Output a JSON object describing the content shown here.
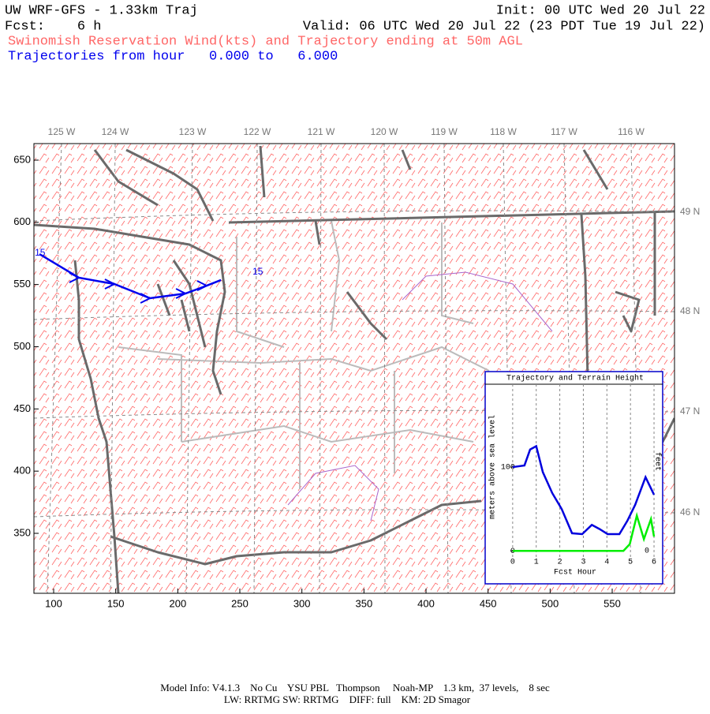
{
  "header": {
    "title": "UW WRF-GFS - 1.33km Traj",
    "init": "Init: 00 UTC Wed 20 Jul 22",
    "fcst": "Fcst:    6 h",
    "valid": "Valid: 06 UTC Wed 20 Jul 22 (23 PDT Tue 19 Jul 22)",
    "subtitle": "Swinomish Reservation Wind(kts) and Trajectory ending at 50m AGL",
    "trajectory_hours": "Trajectories from hour   0.000 to   6.000"
  },
  "map": {
    "xlim": [
      84.1,
      600.2
    ],
    "ylim": [
      301.8,
      663.3
    ],
    "xticks": [
      100,
      150,
      200,
      250,
      300,
      350,
      400,
      450,
      500,
      550
    ],
    "yticks": [
      350,
      400,
      450,
      500,
      550,
      600,
      650
    ],
    "lon_labels": [
      "125 W",
      "124 W",
      "123 W",
      "122 W",
      "121 W",
      "120 W",
      "119 W",
      "118 W",
      "117 W",
      "116 W"
    ],
    "lat_labels": [
      "49 N",
      "48 N",
      "47 N",
      "46 N"
    ],
    "trajectory": {
      "color": "#0000ee",
      "x": [
        88.6,
        120.3,
        148.9,
        177.6,
        206.2,
        223.3,
        234.8
      ],
      "y": [
        574.5,
        555.5,
        550.4,
        539.0,
        542.8,
        549.1,
        553.6
      ],
      "labels": [
        "15",
        "15"
      ]
    }
  },
  "chart_data": {
    "type": "line",
    "title": "Trajectory and Terrain Height",
    "xlabel": "Fcst Hour",
    "ylabel": "meters above sea level",
    "y2label": "feet",
    "xlim": [
      -1.0,
      6.3
    ],
    "ylim": [
      -13,
      199
    ],
    "xticks": [
      0,
      1,
      2,
      3,
      4,
      5,
      6
    ],
    "yticks": [
      0,
      100
    ],
    "y2lim": [
      -43,
      653
    ],
    "y2ticks": [
      0
    ],
    "series": [
      {
        "color": "#0000dd",
        "x": [
          0,
          0.5,
          0.74,
          1.0,
          1.28,
          1.68,
          2.08,
          2.52,
          2.95,
          3.36,
          3.69,
          4.03,
          4.53,
          4.87,
          5.2,
          5.64,
          6.0
        ],
        "values": [
          100,
          102,
          121,
          125,
          94,
          69,
          50,
          21,
          20,
          31,
          26,
          20,
          20,
          36,
          55,
          88,
          67
        ]
      },
      {
        "color": "#00ee00",
        "x": [
          0,
          4.7,
          4.97,
          5.27,
          5.57,
          5.87,
          6.0
        ],
        "values": [
          0,
          0,
          8,
          42,
          14,
          38,
          17
        ]
      }
    ]
  },
  "footer": {
    "line1": "Model Info: V4.1.3    No Cu    YSU PBL   Thompson     Noah-MP    1.3 km,  37 levels,    8 sec",
    "line2": "LW: RRTMG SW: RRTMG    DIFF: full    KM: 2D Smagor"
  }
}
